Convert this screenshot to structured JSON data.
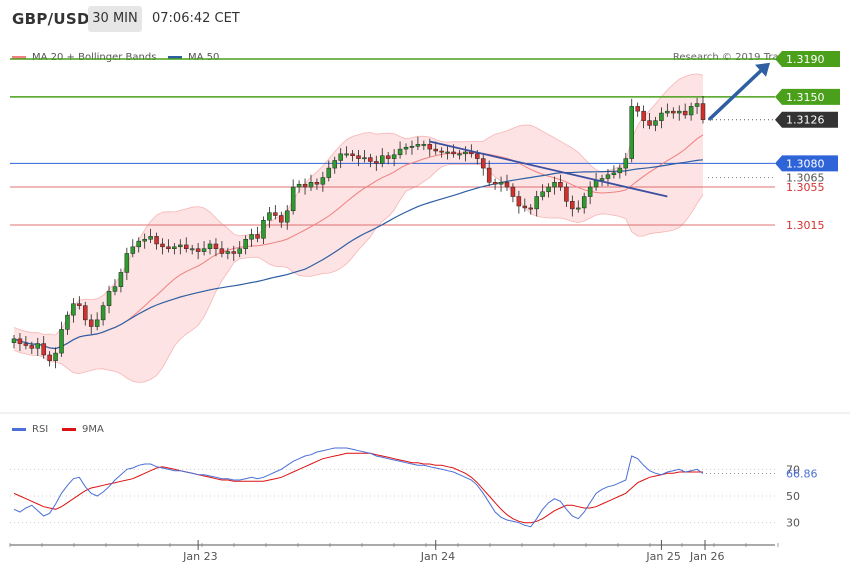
{
  "header": {
    "pair": "GBP/USD",
    "timeframe": "30 MIN",
    "time": "07:06:42 CET"
  },
  "legend": {
    "price": [
      {
        "name": "MA 20 + Bollinger Bands",
        "color": "#f08080"
      },
      {
        "name": "MA 50",
        "color": "#2e5fa3"
      }
    ],
    "rsi": [
      {
        "name": "RSI",
        "color": "#4a6fd6"
      },
      {
        "name": "9MA",
        "color": "#dd1111"
      }
    ]
  },
  "credit": "Research © 2019 Trading Central",
  "chart_data": [
    {
      "type": "candlestick",
      "ylim": [
        1.282,
        1.321
      ],
      "x_ticks": [
        "Jan 23",
        "Jan 24",
        "Jan 25",
        "Jan 26"
      ],
      "levels": [
        {
          "value": "1.3190",
          "kind": "resistance"
        },
        {
          "value": "1.3150",
          "kind": "resistance"
        },
        {
          "value": "1.3126",
          "kind": "last"
        },
        {
          "value": "1.3080",
          "kind": "pivot"
        },
        {
          "value": "1.3065",
          "kind": "ma50"
        },
        {
          "value": "1.3055",
          "kind": "support"
        },
        {
          "value": "1.3015",
          "kind": "support"
        }
      ],
      "closes": [
        1.2895,
        1.289,
        1.2888,
        1.2885,
        1.289,
        1.2878,
        1.2872,
        1.288,
        1.2905,
        1.292,
        1.2932,
        1.293,
        1.2915,
        1.2908,
        1.2915,
        1.293,
        1.2945,
        1.295,
        1.2965,
        1.2985,
        1.2992,
        1.2998,
        1.3,
        1.3003,
        1.2995,
        1.2992,
        1.299,
        1.2992,
        1.2994,
        1.299,
        1.299,
        1.2987,
        1.299,
        1.2995,
        1.299,
        1.2985,
        1.2987,
        1.2985,
        1.299,
        1.3,
        1.3005,
        1.3001,
        1.302,
        1.3028,
        1.3025,
        1.3018,
        1.303,
        1.3055,
        1.3058,
        1.3055,
        1.306,
        1.3058,
        1.3065,
        1.3075,
        1.3083,
        1.309,
        1.309,
        1.3088,
        1.3085,
        1.3086,
        1.3082,
        1.308,
        1.3088,
        1.3085,
        1.3089,
        1.3095,
        1.3097,
        1.3098,
        1.31,
        1.31,
        1.3095,
        1.3093,
        1.3092,
        1.3092,
        1.309,
        1.309,
        1.3092,
        1.309,
        1.3085,
        1.3075,
        1.306,
        1.3058,
        1.306,
        1.3055,
        1.3045,
        1.3035,
        1.3033,
        1.3032,
        1.3045,
        1.305,
        1.3055,
        1.306,
        1.3055,
        1.304,
        1.3032,
        1.3033,
        1.3045,
        1.3055,
        1.3062,
        1.3064,
        1.3068,
        1.307,
        1.3075,
        1.3085,
        1.314,
        1.3135,
        1.3125,
        1.312,
        1.3125,
        1.3133,
        1.3135,
        1.3133,
        1.3135,
        1.3131,
        1.314,
        1.3143,
        1.3126
      ],
      "overlays": [
        "MA 20",
        "Bollinger Bands",
        "MA 50",
        "trendline",
        "forecast arrow"
      ]
    },
    {
      "type": "line",
      "series": [
        {
          "name": "RSI"
        },
        {
          "name": "9MA"
        }
      ],
      "y_ticks": [
        "70",
        "50",
        "30"
      ],
      "ylim": [
        17,
        92
      ],
      "last_value": "66.86",
      "rsi": [
        40,
        38,
        41,
        43,
        39,
        35,
        37,
        44,
        52,
        58,
        63,
        64,
        57,
        52,
        50,
        53,
        57,
        62,
        66,
        70,
        71,
        73,
        74,
        74,
        72,
        71,
        70,
        69,
        69,
        68,
        67,
        66,
        66,
        65,
        64,
        63,
        63,
        62,
        62,
        63,
        64,
        63,
        64,
        66,
        68,
        70,
        73,
        76,
        78,
        80,
        81,
        83,
        84,
        85,
        86,
        86,
        86,
        85,
        84,
        83,
        82,
        80,
        79,
        78,
        77,
        76,
        75,
        74,
        73,
        73,
        72,
        71,
        70,
        69,
        68,
        66,
        64,
        62,
        58,
        52,
        45,
        38,
        34,
        32,
        31,
        30,
        28,
        27,
        33,
        40,
        45,
        48,
        46,
        40,
        35,
        33,
        38,
        45,
        52,
        55,
        57,
        58,
        60,
        62,
        80,
        78,
        73,
        69,
        67,
        66,
        68,
        69,
        70,
        68,
        69,
        70,
        66.86
      ],
      "ma9": [
        52,
        50,
        48,
        46,
        44,
        42,
        41,
        40,
        42,
        45,
        48,
        51,
        54,
        56,
        57,
        58,
        59,
        60,
        61,
        62,
        63,
        65,
        67,
        69,
        71,
        72,
        71,
        70,
        69,
        68,
        67,
        66,
        65,
        64,
        63,
        62,
        62,
        61,
        61,
        61,
        61,
        61,
        61,
        62,
        63,
        64,
        66,
        68,
        70,
        72,
        74,
        76,
        78,
        79,
        80,
        81,
        82,
        82,
        82,
        82,
        82,
        81,
        80,
        79,
        78,
        77,
        76,
        75,
        75,
        74,
        74,
        73,
        73,
        72,
        71,
        69,
        67,
        64,
        60,
        55,
        50,
        45,
        40,
        36,
        33,
        31,
        30,
        30,
        31,
        33,
        36,
        39,
        41,
        43,
        43,
        42,
        41,
        41,
        42,
        44,
        46,
        48,
        50,
        52,
        56,
        60,
        62,
        64,
        65,
        66,
        67,
        67,
        68,
        68,
        68,
        68,
        68
      ]
    }
  ]
}
